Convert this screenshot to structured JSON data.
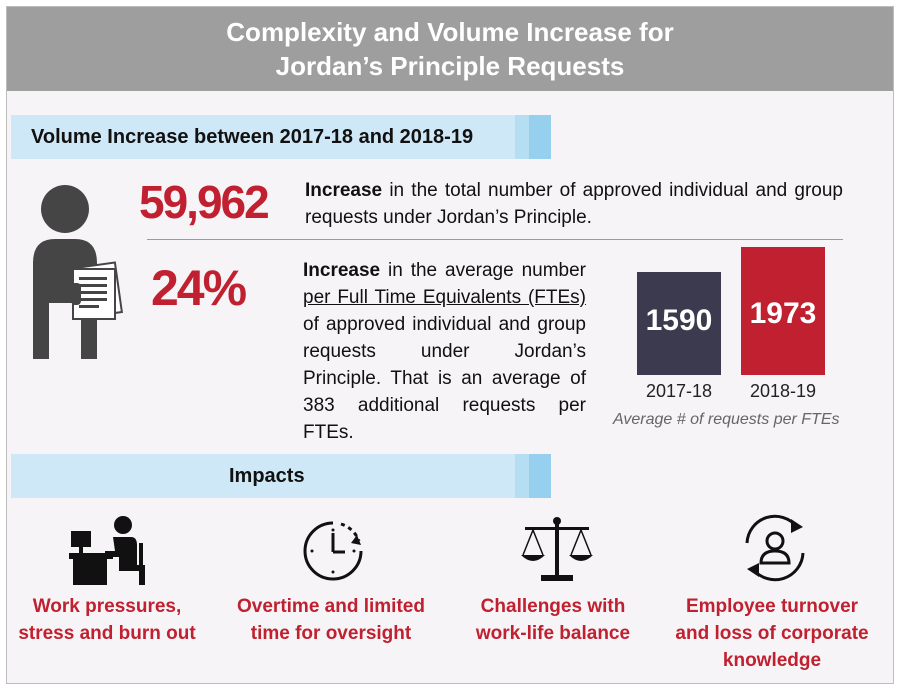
{
  "header": {
    "title_line1": "Complexity and Volume Increase for",
    "title_line2": "Jordan’s Principle Requests"
  },
  "volume_section": {
    "heading": "Volume Increase between 2017-18 and 2018-19"
  },
  "stat1": {
    "value": "59,962",
    "lead": "Increase",
    "text": " in the total number of approved individual and group requests under Jordan’s Principle."
  },
  "stat2": {
    "value": "24%",
    "lead": "Increase",
    "text_a": " in the average number ",
    "underlined": "per Full Time Equivalents (FTEs)",
    "text_b": " of approved individual and group requests under Jordan’s Principle. That is an average of 383 additional requests per FTEs."
  },
  "chart_data": {
    "type": "bar",
    "categories": [
      "2017-18",
      "2018-19"
    ],
    "values": [
      1590,
      1973
    ],
    "value_labels": [
      "1590",
      "1973"
    ],
    "caption": "Average # of requests per FTEs",
    "colors": [
      "#3b3a4f",
      "#c0202f"
    ]
  },
  "impacts_section": {
    "heading": "Impacts",
    "items": [
      {
        "icon": "desk-worker-icon",
        "line1": "Work pressures,",
        "line2": "stress and burn out",
        "line3": ""
      },
      {
        "icon": "clock-icon",
        "line1": "Overtime and limited",
        "line2": "time for oversight",
        "line3": ""
      },
      {
        "icon": "scales-icon",
        "line1": "Challenges with",
        "line2": "work-life balance",
        "line3": ""
      },
      {
        "icon": "person-cycle-icon",
        "line1": "Employee turnover",
        "line2": "and loss of corporate",
        "line3": "knowledge"
      }
    ]
  },
  "colors": {
    "accent_red": "#c0202f",
    "dark_bar": "#3b3a4f",
    "band_blue": "#cfe8f7",
    "title_gray": "#9e9e9e"
  }
}
